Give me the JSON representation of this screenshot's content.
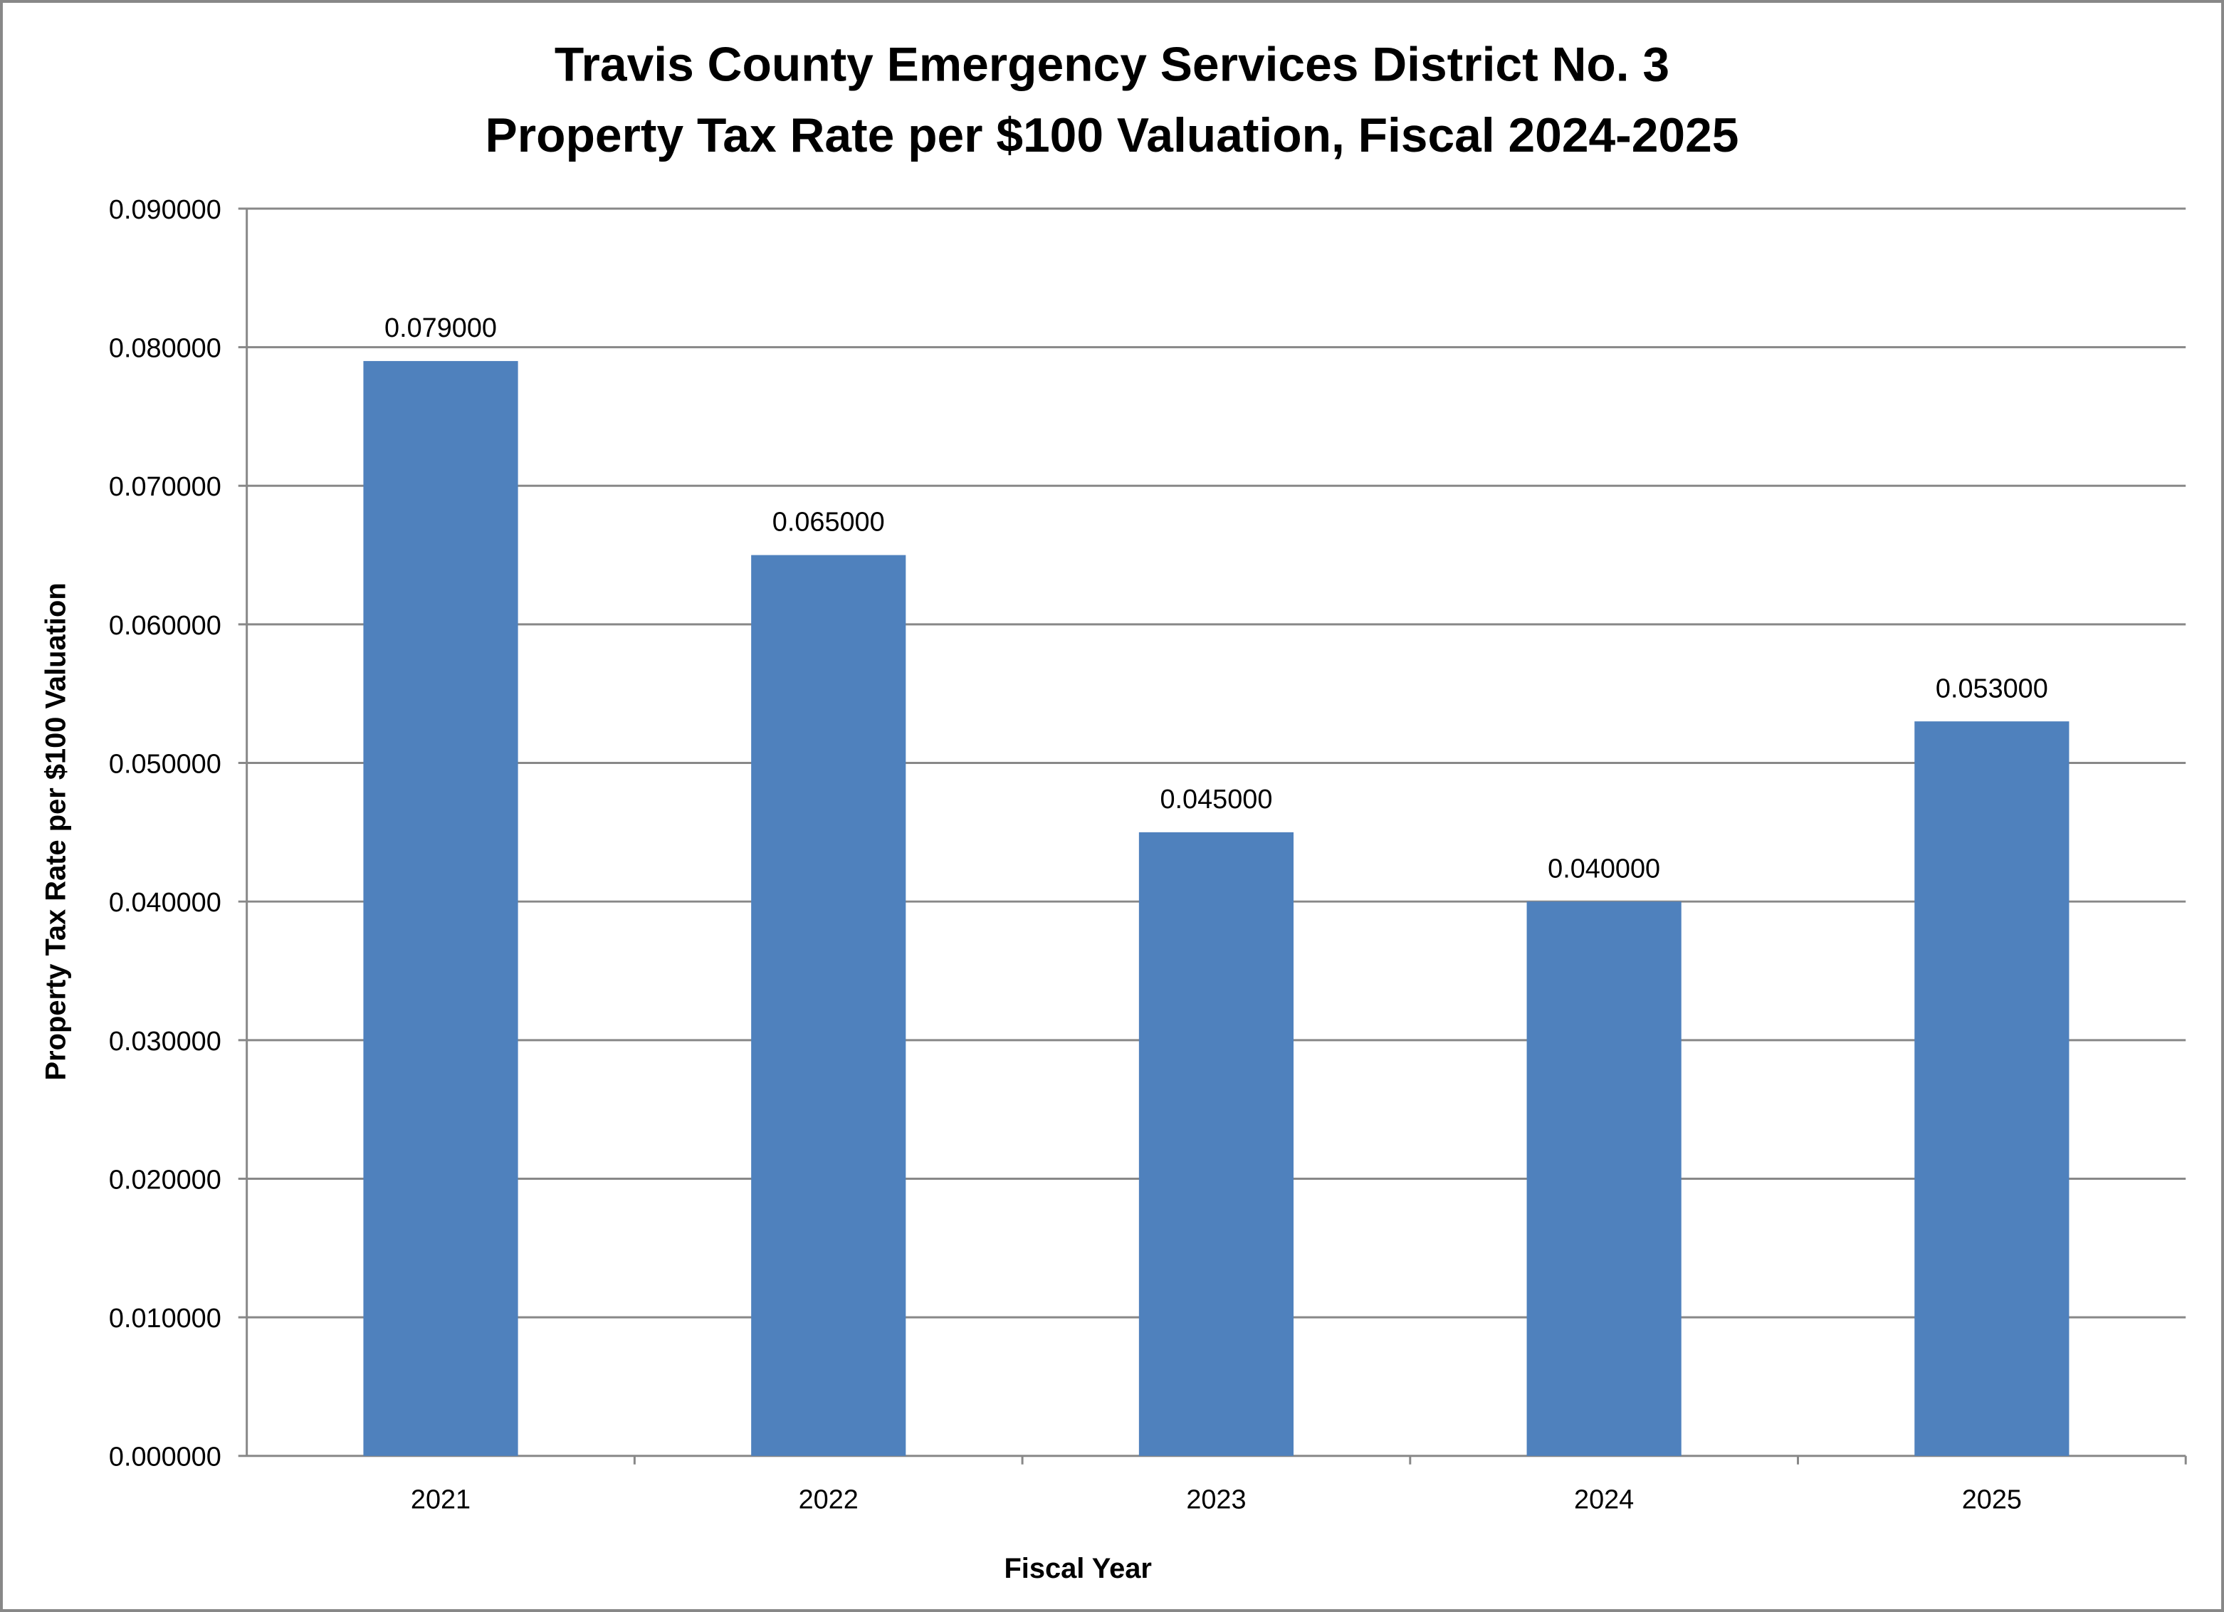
{
  "chart_data": {
    "type": "bar",
    "title": [
      "Travis County Emergency Services District No. 3",
      "Property Tax Rate per $100 Valuation, Fiscal 2024-2025"
    ],
    "xlabel": "Fiscal Year",
    "ylabel": "Property Tax Rate per $100 Valuation",
    "categories": [
      "2021",
      "2022",
      "2023",
      "2024",
      "2025"
    ],
    "values": [
      0.079,
      0.065,
      0.045,
      0.04,
      0.053
    ],
    "data_labels": [
      "0.079000",
      "0.065000",
      "0.045000",
      "0.040000",
      "0.053000"
    ],
    "ylim": [
      0,
      0.09
    ],
    "yticks": [
      "0.000000",
      "0.010000",
      "0.020000",
      "0.030000",
      "0.040000",
      "0.050000",
      "0.060000",
      "0.070000",
      "0.080000",
      "0.090000"
    ],
    "grid": true,
    "legend": "none",
    "bar_color": "#4F81BD"
  }
}
